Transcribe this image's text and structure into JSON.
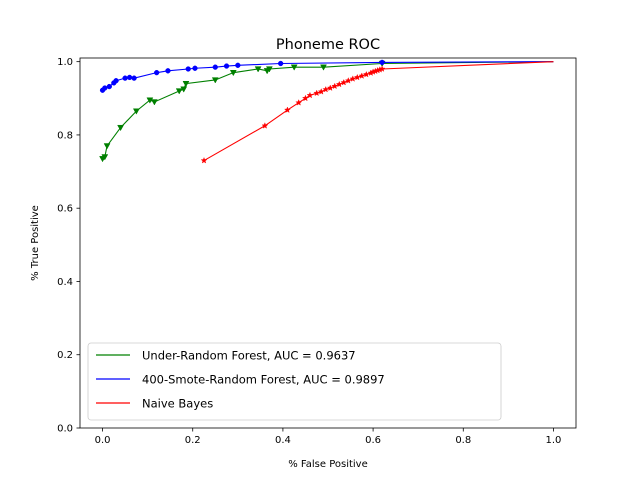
{
  "chart_data": {
    "type": "line",
    "title": "Phoneme ROC",
    "xlabel": "% False Positive",
    "ylabel": "% True Positive",
    "xlim": [
      -0.05,
      1.05
    ],
    "ylim": [
      0.0,
      1.01
    ],
    "xticks": [
      "0.0",
      "0.2",
      "0.4",
      "0.6",
      "0.8",
      "1.0"
    ],
    "yticks": [
      "0.0",
      "0.2",
      "0.4",
      "0.6",
      "0.8",
      "1.0"
    ],
    "grid": false,
    "legend_position": "lower-left",
    "series": [
      {
        "name": "Under-Random Forest, AUC = 0.9637",
        "color": "#008000",
        "marker": "triangle-down",
        "x": [
          0.0,
          0.005,
          0.01,
          0.04,
          0.075,
          0.105,
          0.115,
          0.17,
          0.18,
          0.185,
          0.25,
          0.29,
          0.345,
          0.365,
          0.37,
          0.425,
          0.49,
          0.62,
          1.0
        ],
        "y": [
          0.735,
          0.74,
          0.77,
          0.82,
          0.865,
          0.895,
          0.89,
          0.92,
          0.925,
          0.94,
          0.95,
          0.97,
          0.98,
          0.975,
          0.98,
          0.985,
          0.985,
          0.995,
          1.0
        ]
      },
      {
        "name": "400-Smote-Random Forest, AUC = 0.9897",
        "color": "#0000ff",
        "marker": "circle",
        "x": [
          0.0,
          0.005,
          0.015,
          0.025,
          0.03,
          0.05,
          0.06,
          0.07,
          0.12,
          0.145,
          0.19,
          0.205,
          0.25,
          0.275,
          0.3,
          0.395,
          0.62,
          1.0
        ],
        "y": [
          0.922,
          0.928,
          0.932,
          0.942,
          0.948,
          0.955,
          0.957,
          0.955,
          0.97,
          0.975,
          0.98,
          0.982,
          0.985,
          0.988,
          0.99,
          0.995,
          0.998,
          1.0
        ]
      },
      {
        "name": "Naive Bayes",
        "color": "#ff0000",
        "marker": "star",
        "x": [
          0.225,
          0.36,
          0.41,
          0.435,
          0.45,
          0.46,
          0.475,
          0.485,
          0.495,
          0.505,
          0.515,
          0.525,
          0.535,
          0.545,
          0.555,
          0.565,
          0.575,
          0.585,
          0.595,
          0.6,
          0.605,
          0.61,
          0.615,
          0.62,
          1.0
        ],
        "y": [
          0.73,
          0.825,
          0.868,
          0.888,
          0.9,
          0.908,
          0.914,
          0.918,
          0.924,
          0.928,
          0.933,
          0.938,
          0.943,
          0.948,
          0.953,
          0.957,
          0.961,
          0.965,
          0.969,
          0.972,
          0.974,
          0.976,
          0.978,
          0.98,
          1.0
        ]
      }
    ]
  }
}
